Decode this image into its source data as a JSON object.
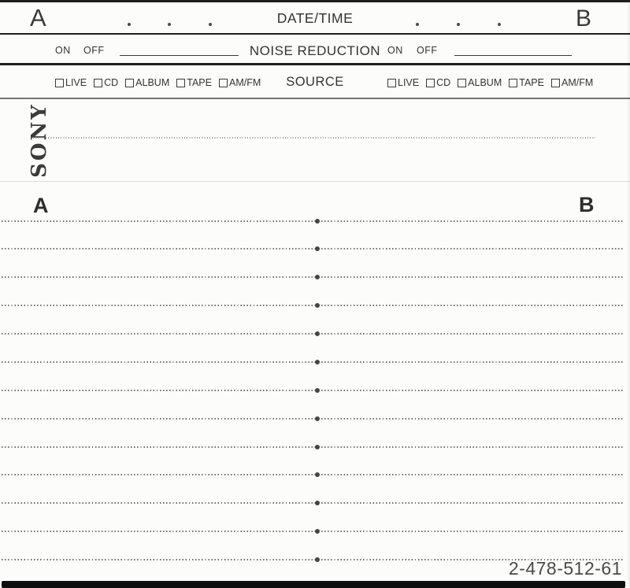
{
  "header": {
    "side_a": "A",
    "side_b": "B",
    "date_time_label": "DATE/TIME",
    "noise_reduction_label": "NOISE REDUCTION",
    "on_label": "ON",
    "off_label": "OFF",
    "source_label": "SOURCE",
    "source_options": [
      "LIVE",
      "CD",
      "ALBUM",
      "TAPE",
      "AM/FM"
    ]
  },
  "spine": {
    "brand": "SONY"
  },
  "tracklist": {
    "side_a": "A",
    "side_b": "B",
    "line_count": 13
  },
  "footer": {
    "part_number": "2-478-512-61"
  },
  "colors": {
    "paper": "#fcfcfa",
    "ink": "#2f2f2f",
    "bottom_bar": "#0e0e0e"
  }
}
